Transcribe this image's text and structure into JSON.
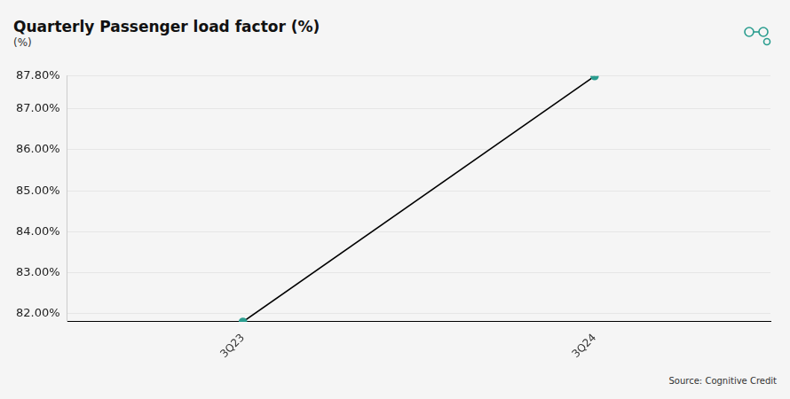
{
  "chart_data": {
    "type": "line",
    "title": "Quarterly Passenger load factor (%)",
    "subtitle": "(%)",
    "source": "Source: Cognitive Credit",
    "categories": [
      "3Q23",
      "3Q24"
    ],
    "values": [
      81.8,
      87.8
    ],
    "color": "#000000",
    "marker": "circle",
    "ylim": [
      81.8,
      87.8
    ],
    "yticks": [
      {
        "value": 82,
        "label": "82.00%"
      },
      {
        "value": 83,
        "label": "83.00%"
      },
      {
        "value": 84,
        "label": "84.00%"
      },
      {
        "value": 85,
        "label": "85.00%"
      },
      {
        "value": 86,
        "label": "86.00%"
      },
      {
        "value": 87,
        "label": "87.00%"
      },
      {
        "value": 87.8,
        "label": "87.80%"
      }
    ],
    "grid": true
  }
}
